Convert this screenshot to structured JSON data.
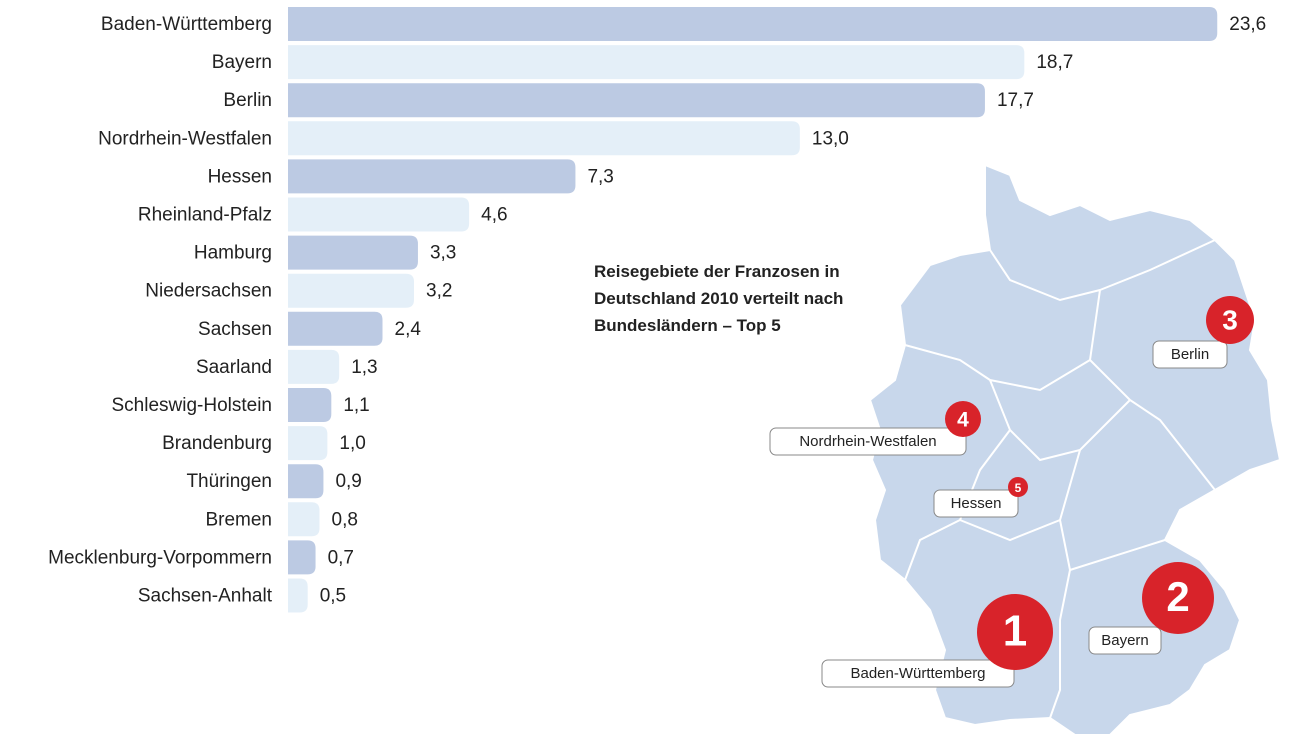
{
  "chart_data": {
    "type": "bar",
    "orientation": "horizontal",
    "title": "Reisegebiete der Franzosen in Deutschland 2010 verteilt nach Bundesländern – Top 5",
    "categories": [
      "Baden-Württemberg",
      "Bayern",
      "Berlin",
      "Nordrhein-Westfalen",
      "Hessen",
      "Rheinland-Pfalz",
      "Hamburg",
      "Niedersachsen",
      "Sachsen",
      "Saarland",
      "Schleswig-Holstein",
      "Brandenburg",
      "Thüringen",
      "Bremen",
      "Mecklenburg-Vorpommern",
      "Sachsen-Anhalt"
    ],
    "values": [
      23.6,
      18.7,
      17.7,
      13.0,
      7.3,
      4.6,
      3.3,
      3.2,
      2.4,
      1.3,
      1.1,
      1.0,
      0.9,
      0.8,
      0.7,
      0.5
    ],
    "value_labels": [
      "23,6",
      "18,7",
      "17,7",
      "13,0",
      "7,3",
      "4,6",
      "3,3",
      "3,2",
      "2,4",
      "1,3",
      "1,1",
      "1,0",
      "0,9",
      "0,8",
      "0,7",
      "0,5"
    ],
    "colors": [
      "#bccae3",
      "#e4eff8"
    ],
    "xlim": [
      0,
      24
    ],
    "map_labels": [
      {
        "rank": 1,
        "name": "Baden-Württemberg"
      },
      {
        "rank": 2,
        "name": "Bayern"
      },
      {
        "rank": 3,
        "name": "Berlin"
      },
      {
        "rank": 4,
        "name": "Nordrhein-Westfalen"
      },
      {
        "rank": 5,
        "name": "Hessen"
      }
    ],
    "badge_color": "#d8232a"
  }
}
